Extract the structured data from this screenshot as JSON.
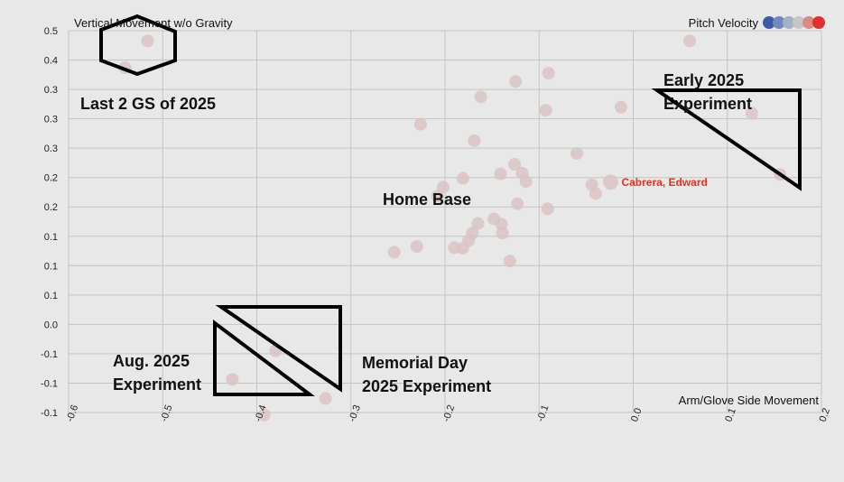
{
  "chart_data": {
    "type": "scatter",
    "ylabel": "Vertical Movement w/o Gravity",
    "xlabel": "Arm/Glove Side Movement",
    "legend": {
      "title": "Pitch Velocity",
      "placement": "top-right",
      "colors": [
        "#3b5aa8",
        "#6f88bf",
        "#a3b0c7",
        "#c6c6c6",
        "#d98a86",
        "#e03030"
      ]
    },
    "xlim": [
      -0.6,
      0.2
    ],
    "ylim": [
      -0.1,
      0.5
    ],
    "grid": true,
    "x_ticks": [
      "-0.6",
      "-0.5",
      "-0.4",
      "-0.3",
      "-0.2",
      "-0.1",
      "0.0",
      "0.1",
      "0.2"
    ],
    "y_ticks": [
      "0.5",
      "0.4",
      "0.3",
      "0.3",
      "0.3",
      "0.2",
      "0.2",
      "0.1",
      "0.1",
      "0.1",
      "0.0",
      "-0.1",
      "-0.1",
      "-0.1"
    ],
    "point_color": "#d9c3c3",
    "points": [
      {
        "x": -0.516,
        "y": 0.484
      },
      {
        "x": -0.54,
        "y": 0.442
      },
      {
        "x": 0.06,
        "y": 0.484
      },
      {
        "x": -0.125,
        "y": 0.42
      },
      {
        "x": -0.09,
        "y": 0.433
      },
      {
        "x": -0.162,
        "y": 0.396
      },
      {
        "x": -0.093,
        "y": 0.375
      },
      {
        "x": -0.013,
        "y": 0.38
      },
      {
        "x": 0.126,
        "y": 0.37
      },
      {
        "x": -0.226,
        "y": 0.353
      },
      {
        "x": -0.169,
        "y": 0.327
      },
      {
        "x": -0.06,
        "y": 0.307
      },
      {
        "x": -0.126,
        "y": 0.29
      },
      {
        "x": -0.141,
        "y": 0.275
      },
      {
        "x": -0.118,
        "y": 0.276
      },
      {
        "x": -0.114,
        "y": 0.263
      },
      {
        "x": -0.181,
        "y": 0.268
      },
      {
        "x": -0.202,
        "y": 0.254
      },
      {
        "x": -0.208,
        "y": 0.24
      },
      {
        "x": -0.044,
        "y": 0.258
      },
      {
        "x": -0.04,
        "y": 0.244
      },
      {
        "x": -0.024,
        "y": 0.262,
        "label": "Cabrera, Edward"
      },
      {
        "x": 0.156,
        "y": 0.274
      },
      {
        "x": -0.123,
        "y": 0.228
      },
      {
        "x": -0.091,
        "y": 0.22
      },
      {
        "x": -0.148,
        "y": 0.204
      },
      {
        "x": -0.165,
        "y": 0.197
      },
      {
        "x": -0.14,
        "y": 0.196
      },
      {
        "x": -0.139,
        "y": 0.182
      },
      {
        "x": -0.171,
        "y": 0.182
      },
      {
        "x": -0.175,
        "y": 0.17
      },
      {
        "x": -0.19,
        "y": 0.159
      },
      {
        "x": -0.181,
        "y": 0.158
      },
      {
        "x": -0.23,
        "y": 0.161
      },
      {
        "x": -0.254,
        "y": 0.152
      },
      {
        "x": -0.131,
        "y": 0.138
      },
      {
        "x": -0.38,
        "y": -0.003
      },
      {
        "x": -0.426,
        "y": -0.048
      },
      {
        "x": -0.327,
        "y": -0.078
      },
      {
        "x": -0.392,
        "y": -0.104
      }
    ],
    "annotations": [
      {
        "text": "Last 2 GS of 2025"
      },
      {
        "text": "Early 2025 Experiment"
      },
      {
        "text": "Home Base"
      },
      {
        "text": "Aug. 2025 Experiment"
      },
      {
        "text": "Memorial Day 2025 Experiment"
      }
    ]
  }
}
